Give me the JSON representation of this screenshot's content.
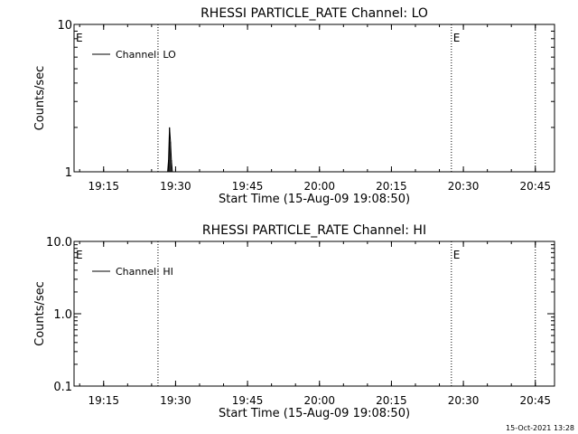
{
  "footer": {
    "timestamp": "15-Oct-2021 13:28"
  },
  "chart_data": [
    {
      "type": "line",
      "title": "RHESSI PARTICLE_RATE Channel: LO",
      "xlabel": "Start Time (15-Aug-09 19:08:50)",
      "ylabel": "Counts/sec",
      "x_ticks": [
        "19:15",
        "19:30",
        "19:45",
        "20:00",
        "20:15",
        "20:30",
        "20:45"
      ],
      "y_ticks": [
        "1",
        "10"
      ],
      "y_scale": "log",
      "ylim": [
        1,
        10
      ],
      "xlim": [
        "19:08:50",
        "20:49:00"
      ],
      "grid": false,
      "legend": {
        "position": "top-left",
        "entries": [
          "Channel: LO"
        ]
      },
      "series": [
        {
          "name": "Channel: LO",
          "x": [
            "19:28:20",
            "19:28:32",
            "19:28:44",
            "19:28:56",
            "19:29:08",
            "19:29:20"
          ],
          "values": [
            1,
            1.2,
            2.0,
            1.6,
            1.2,
            1
          ]
        }
      ],
      "vlines": [
        "19:26:20",
        "20:27:30",
        "20:45:00"
      ],
      "annotations": [
        {
          "text": "E",
          "x": "19:08:50"
        },
        {
          "text": "E",
          "x": "20:27:30"
        }
      ]
    },
    {
      "type": "line",
      "title": "RHESSI PARTICLE_RATE Channel: HI",
      "xlabel": "Start Time (15-Aug-09 19:08:50)",
      "ylabel": "Counts/sec",
      "x_ticks": [
        "19:15",
        "19:30",
        "19:45",
        "20:00",
        "20:15",
        "20:30",
        "20:45"
      ],
      "y_ticks": [
        "0.1",
        "1.0",
        "10.0"
      ],
      "y_scale": "log",
      "ylim": [
        0.1,
        10
      ],
      "xlim": [
        "19:08:50",
        "20:49:00"
      ],
      "grid": false,
      "legend": {
        "position": "top-left",
        "entries": [
          "Channel: HI"
        ]
      },
      "series": [
        {
          "name": "Channel: HI",
          "x": [],
          "values": []
        }
      ],
      "vlines": [
        "19:26:20",
        "20:27:30",
        "20:45:00"
      ],
      "annotations": [
        {
          "text": "E",
          "x": "19:08:50"
        },
        {
          "text": "E",
          "x": "20:27:30"
        }
      ]
    }
  ]
}
